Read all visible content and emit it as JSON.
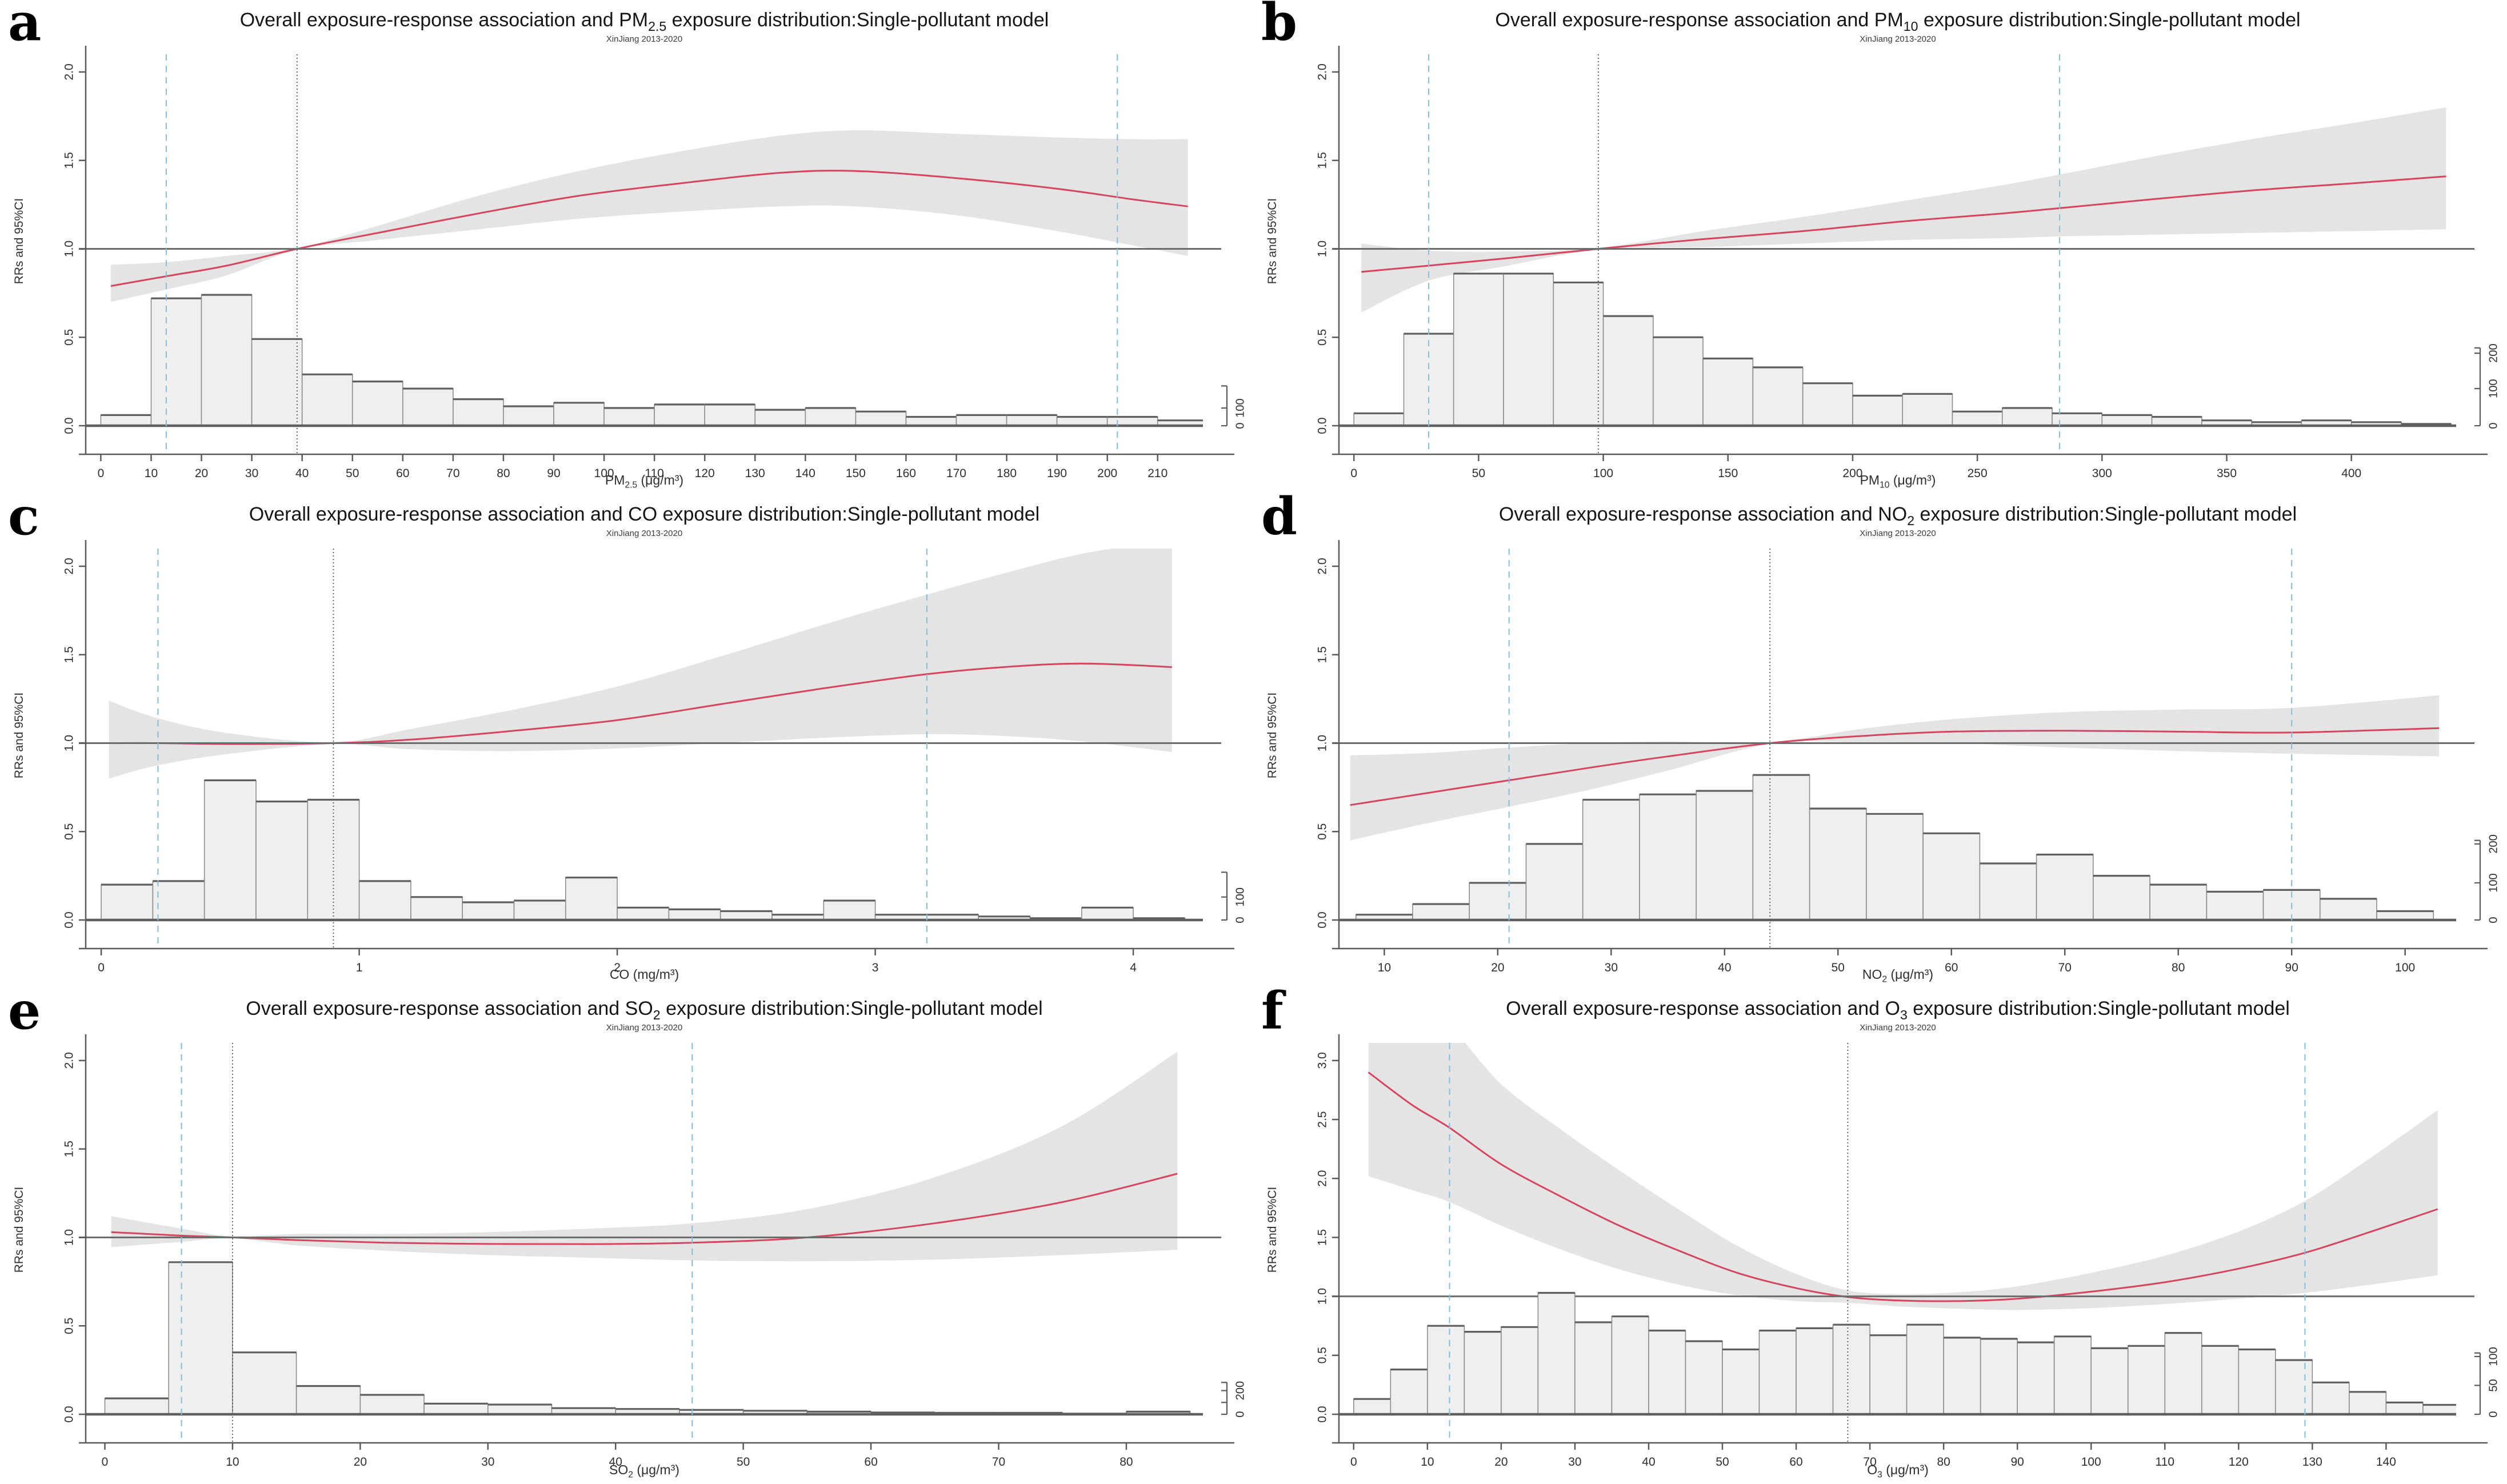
{
  "figure": {
    "background": "#ffffff",
    "colors": {
      "curve": "#d64560",
      "band": "#e4e4e4",
      "hist_fill": "#efefef",
      "hist_stroke": "#8c8c8c",
      "hist_top": "#5f5f5f",
      "percentile_line": "#85bcd8",
      "reference_line": "#565656",
      "rr1_line": "#6b6b6b",
      "axis": "#5a5a5a",
      "tick_label": "#2e2e2e"
    }
  },
  "chart_data": [
    {
      "type": "line+histogram",
      "letter": "a",
      "title": {
        "pre": "Overall exposure-response association and PM",
        "sub": "2.5",
        "post": " exposure distribution:Single-pollutant model"
      },
      "subtitle": "XinJiang 2013-2020",
      "ylabel": "RRs and 95%CI",
      "xlabel": {
        "pre": "PM",
        "sub": "2.5",
        "post": " (μg/m³)"
      },
      "xlim": [
        -3,
        219
      ],
      "ylim": [
        0,
        2.1
      ],
      "xticks": [
        0,
        10,
        20,
        30,
        40,
        50,
        60,
        70,
        80,
        90,
        100,
        110,
        120,
        130,
        140,
        150,
        160,
        170,
        180,
        190,
        200,
        210
      ],
      "yticks": [
        "0.0",
        "0.5",
        "1.0",
        "1.5",
        "2.0"
      ],
      "reference_value": 39,
      "percentile_lines": [
        13,
        202
      ],
      "curve_points": [
        [
          2,
          0.79,
          0.7,
          0.91
        ],
        [
          13,
          0.845,
          0.77,
          0.925
        ],
        [
          25,
          0.905,
          0.85,
          0.96
        ],
        [
          39,
          1.0,
          0.995,
          1.005
        ],
        [
          55,
          1.09,
          1.05,
          1.13
        ],
        [
          75,
          1.2,
          1.11,
          1.3
        ],
        [
          95,
          1.3,
          1.17,
          1.44
        ],
        [
          115,
          1.37,
          1.21,
          1.55
        ],
        [
          135,
          1.43,
          1.24,
          1.64
        ],
        [
          150,
          1.44,
          1.24,
          1.67
        ],
        [
          170,
          1.4,
          1.19,
          1.65
        ],
        [
          190,
          1.34,
          1.1,
          1.63
        ],
        [
          205,
          1.28,
          1.02,
          1.62
        ],
        [
          216,
          1.24,
          0.96,
          1.62
        ]
      ],
      "histogram": {
        "bin_start": 0,
        "bin_width": 10,
        "heights": [
          0.06,
          0.72,
          0.74,
          0.49,
          0.29,
          0.25,
          0.21,
          0.15,
          0.11,
          0.13,
          0.1,
          0.12,
          0.12,
          0.09,
          0.1,
          0.08,
          0.05,
          0.06,
          0.06,
          0.05,
          0.05,
          0.03
        ]
      },
      "freq_axis": {
        "labels": [
          "0",
          "100"
        ],
        "values": [
          0,
          0.1
        ],
        "top": 0.225
      }
    },
    {
      "type": "line+histogram",
      "letter": "b",
      "title": {
        "pre": "Overall exposure-response association and PM",
        "sub": "10",
        "post": " exposure distribution:Single-pollutant model"
      },
      "subtitle": "XinJiang 2013-2020",
      "ylabel": "RRs and 95%CI",
      "xlabel": {
        "pre": "PM",
        "sub": "10",
        "post": " (μg/m³)"
      },
      "xlim": [
        -6,
        442
      ],
      "ylim": [
        0,
        2.1
      ],
      "xticks": [
        0,
        50,
        100,
        150,
        200,
        250,
        300,
        350,
        400
      ],
      "yticks": [
        "0.0",
        "0.5",
        "1.0",
        "1.5",
        "2.0"
      ],
      "reference_value": 98,
      "percentile_lines": [
        30,
        283
      ],
      "curve_points": [
        [
          3,
          0.87,
          0.64,
          1.03
        ],
        [
          30,
          0.905,
          0.82,
          0.99
        ],
        [
          60,
          0.945,
          0.9,
          0.985
        ],
        [
          98,
          1.0,
          0.995,
          1.005
        ],
        [
          140,
          1.055,
          1.01,
          1.1
        ],
        [
          180,
          1.1,
          1.03,
          1.18
        ],
        [
          220,
          1.155,
          1.05,
          1.27
        ],
        [
          260,
          1.2,
          1.06,
          1.36
        ],
        [
          283,
          1.23,
          1.07,
          1.42
        ],
        [
          320,
          1.28,
          1.08,
          1.52
        ],
        [
          360,
          1.33,
          1.09,
          1.62
        ],
        [
          400,
          1.37,
          1.1,
          1.71
        ],
        [
          438,
          1.41,
          1.11,
          1.8
        ]
      ],
      "histogram": {
        "bin_start": 0,
        "bin_width": 20,
        "heights": [
          0.07,
          0.52,
          0.86,
          0.86,
          0.81,
          0.62,
          0.5,
          0.38,
          0.33,
          0.24,
          0.17,
          0.18,
          0.08,
          0.1,
          0.07,
          0.06,
          0.05,
          0.03,
          0.02,
          0.03,
          0.02,
          0.01
        ]
      },
      "freq_axis": {
        "labels": [
          "0",
          "100",
          "200"
        ],
        "values": [
          0,
          0.21,
          0.41
        ],
        "top": 0.44
      }
    },
    {
      "type": "line+histogram",
      "letter": "c",
      "title": {
        "pre": "Overall exposure-response association and CO",
        "sub": "",
        "post": " exposure distribution:Single-pollutant model"
      },
      "subtitle": "XinJiang 2013-2020",
      "ylabel": "RRs and 95%CI",
      "xlabel": {
        "pre": "CO",
        "sub": "",
        "post": " (mg/m³)"
      },
      "xlim": [
        -0.06,
        4.27
      ],
      "ylim": [
        0,
        2.1
      ],
      "xticks": [
        0,
        1,
        2,
        3,
        4
      ],
      "yticks": [
        "0.0",
        "0.5",
        "1.0",
        "1.5",
        "2.0"
      ],
      "reference_value": 0.9,
      "percentile_lines": [
        0.22,
        3.2
      ],
      "curve_points": [
        [
          0.03,
          1.0,
          0.8,
          1.24
        ],
        [
          0.22,
          1.0,
          0.875,
          1.14
        ],
        [
          0.5,
          0.995,
          0.94,
          1.055
        ],
        [
          0.9,
          1.0,
          0.995,
          1.005
        ],
        [
          1.2,
          1.02,
          0.965,
          1.08
        ],
        [
          1.6,
          1.07,
          0.955,
          1.19
        ],
        [
          2.0,
          1.13,
          0.97,
          1.32
        ],
        [
          2.4,
          1.22,
          1.0,
          1.49
        ],
        [
          2.8,
          1.31,
          1.03,
          1.67
        ],
        [
          3.2,
          1.39,
          1.05,
          1.84
        ],
        [
          3.5,
          1.43,
          1.04,
          1.96
        ],
        [
          3.8,
          1.45,
          1.01,
          2.07
        ],
        [
          4.15,
          1.43,
          0.95,
          2.15
        ]
      ],
      "histogram": {
        "bin_start": 0,
        "bin_width": 0.2,
        "heights": [
          0.2,
          0.22,
          0.79,
          0.67,
          0.68,
          0.22,
          0.13,
          0.1,
          0.11,
          0.24,
          0.07,
          0.06,
          0.05,
          0.03,
          0.11,
          0.03,
          0.03,
          0.02,
          0.01,
          0.07,
          0.01
        ]
      },
      "freq_axis": {
        "labels": [
          "0",
          "100"
        ],
        "values": [
          0,
          0.13
        ],
        "top": 0.27
      }
    },
    {
      "type": "line+histogram",
      "letter": "d",
      "title": {
        "pre": "Overall exposure-response association and NO",
        "sub": "2",
        "post": " exposure distribution:Single-pollutant model"
      },
      "subtitle": "XinJiang 2013-2020",
      "ylabel": "RRs and 95%CI",
      "xlabel": {
        "pre": "NO",
        "sub": "2",
        "post": " (μg/m³)"
      },
      "xlim": [
        6,
        104.5
      ],
      "ylim": [
        0,
        2.1
      ],
      "xticks": [
        10,
        20,
        30,
        40,
        50,
        60,
        70,
        80,
        90,
        100
      ],
      "yticks": [
        "0.0",
        "0.5",
        "1.0",
        "1.5",
        "2.0"
      ],
      "reference_value": 44,
      "percentile_lines": [
        21,
        90
      ],
      "curve_points": [
        [
          7,
          0.65,
          0.45,
          0.93
        ],
        [
          14,
          0.72,
          0.55,
          0.945
        ],
        [
          21,
          0.79,
          0.64,
          0.975
        ],
        [
          28,
          0.86,
          0.735,
          1.0
        ],
        [
          35,
          0.925,
          0.845,
          1.01
        ],
        [
          44,
          1.0,
          0.995,
          1.005
        ],
        [
          52,
          1.04,
          1.005,
          1.08
        ],
        [
          60,
          1.065,
          1.0,
          1.135
        ],
        [
          70,
          1.07,
          0.975,
          1.175
        ],
        [
          80,
          1.065,
          0.955,
          1.19
        ],
        [
          90,
          1.06,
          0.94,
          1.2
        ],
        [
          103,
          1.085,
          0.925,
          1.27
        ]
      ],
      "histogram": {
        "bin_start": 7.5,
        "bin_width": 5,
        "heights": [
          0.03,
          0.09,
          0.21,
          0.43,
          0.68,
          0.71,
          0.73,
          0.82,
          0.63,
          0.6,
          0.49,
          0.32,
          0.37,
          0.25,
          0.2,
          0.16,
          0.17,
          0.12,
          0.05
        ]
      },
      "freq_axis": {
        "labels": [
          "0",
          "100",
          "200"
        ],
        "values": [
          0,
          0.21,
          0.43
        ],
        "top": 0.45
      }
    },
    {
      "type": "line+histogram",
      "letter": "e",
      "title": {
        "pre": "Overall exposure-response association and SO",
        "sub": "2",
        "post": " exposure distribution:Single-pollutant model"
      },
      "subtitle": "XinJiang 2013-2020",
      "ylabel": "RRs and 95%CI",
      "xlabel": {
        "pre": "SO",
        "sub": "2",
        "post": " (μg/m³)"
      },
      "xlim": [
        -1.5,
        86
      ],
      "ylim": [
        0,
        2.1
      ],
      "xticks": [
        0,
        10,
        20,
        30,
        40,
        50,
        60,
        70,
        80
      ],
      "yticks": [
        "0.0",
        "0.5",
        "1.0",
        "1.5",
        "2.0"
      ],
      "reference_value": 10,
      "percentile_lines": [
        6,
        46
      ],
      "curve_points": [
        [
          0.5,
          1.03,
          0.945,
          1.12
        ],
        [
          6,
          1.01,
          0.975,
          1.05
        ],
        [
          10,
          1.0,
          0.995,
          1.005
        ],
        [
          15,
          0.985,
          0.955,
          1.02
        ],
        [
          22,
          0.97,
          0.925,
          1.02
        ],
        [
          30,
          0.963,
          0.9,
          1.03
        ],
        [
          38,
          0.962,
          0.885,
          1.05
        ],
        [
          46,
          0.97,
          0.87,
          1.08
        ],
        [
          55,
          1.0,
          0.865,
          1.16
        ],
        [
          65,
          1.08,
          0.875,
          1.34
        ],
        [
          75,
          1.2,
          0.9,
          1.63
        ],
        [
          84,
          1.36,
          0.93,
          2.05
        ]
      ],
      "histogram": {
        "bin_start": 0,
        "bin_width": 5,
        "heights": [
          0.09,
          0.86,
          0.35,
          0.16,
          0.11,
          0.06,
          0.055,
          0.035,
          0.03,
          0.025,
          0.02,
          0.015,
          0.01,
          0.008,
          0.008,
          0.004,
          0.015
        ]
      },
      "freq_axis": {
        "labels": [
          "0",
          "",
          "200"
        ],
        "values": [
          0,
          0.067,
          0.134
        ],
        "top": 0.18
      }
    },
    {
      "type": "line+histogram",
      "letter": "f",
      "title": {
        "pre": "Overall exposure-response association and O",
        "sub": "3",
        "post": " exposure distribution:Single-pollutant model"
      },
      "subtitle": "XinJiang 2013-2020",
      "ylabel": "RRs and 95%CI",
      "xlabel": {
        "pre": "O",
        "sub": "3",
        "post": " (μg/m³)"
      },
      "xlim": [
        -2,
        149.5
      ],
      "ylim": [
        0,
        3.15
      ],
      "xticks": [
        0,
        10,
        20,
        30,
        40,
        50,
        60,
        70,
        80,
        90,
        100,
        110,
        120,
        130,
        140
      ],
      "yticks": [
        "0.0",
        "0.5",
        "1.0",
        "1.5",
        "2.0",
        "2.5",
        "3.0"
      ],
      "reference_value": 67,
      "percentile_lines": [
        13,
        129
      ],
      "curve_points": [
        [
          2,
          2.9,
          2.02,
          3.6
        ],
        [
          8,
          2.62,
          1.9,
          3.55
        ],
        [
          13,
          2.43,
          1.8,
          3.3
        ],
        [
          20,
          2.12,
          1.6,
          2.8
        ],
        [
          28,
          1.85,
          1.4,
          2.42
        ],
        [
          36,
          1.6,
          1.23,
          2.07
        ],
        [
          44,
          1.39,
          1.1,
          1.74
        ],
        [
          52,
          1.2,
          1.01,
          1.43
        ],
        [
          60,
          1.07,
          0.96,
          1.19
        ],
        [
          67,
          0.995,
          0.945,
          1.05
        ],
        [
          74,
          0.965,
          0.915,
          1.02
        ],
        [
          82,
          0.96,
          0.895,
          1.035
        ],
        [
          90,
          0.98,
          0.885,
          1.085
        ],
        [
          100,
          1.04,
          0.9,
          1.2
        ],
        [
          110,
          1.12,
          0.935,
          1.345
        ],
        [
          120,
          1.235,
          0.98,
          1.55
        ],
        [
          129,
          1.37,
          1.03,
          1.81
        ],
        [
          138,
          1.55,
          1.1,
          2.18
        ],
        [
          147,
          1.74,
          1.18,
          2.58
        ]
      ],
      "histogram": {
        "bin_start": 0,
        "bin_width": 5,
        "heights": [
          0.13,
          0.38,
          0.75,
          0.7,
          0.74,
          1.03,
          0.78,
          0.83,
          0.71,
          0.62,
          0.55,
          0.71,
          0.73,
          0.76,
          0.67,
          0.76,
          0.65,
          0.64,
          0.61,
          0.66,
          0.56,
          0.58,
          0.69,
          0.58,
          0.55,
          0.46,
          0.27,
          0.19,
          0.1,
          0.08
        ]
      },
      "freq_axis": {
        "labels": [
          "0",
          "50",
          "100"
        ],
        "values": [
          0,
          0.245,
          0.49
        ],
        "top": 0.52
      }
    }
  ]
}
